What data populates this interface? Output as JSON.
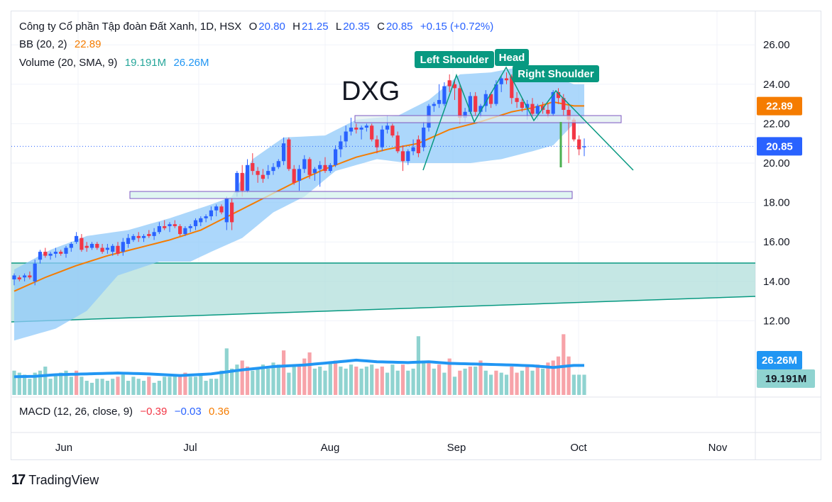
{
  "header": {
    "symbol_desc": "Công ty Cổ phần Tập đoàn Đất Xanh, 1D, HSX",
    "o_label": "O",
    "o_value": "20.80",
    "h_label": "H",
    "h_value": "21.25",
    "l_label": "L",
    "l_value": "20.35",
    "c_label": "C",
    "c_value": "20.85",
    "change": "+0.15 (+0.72%)"
  },
  "bb_legend": {
    "label": "BB (20, 2)",
    "value": "22.89"
  },
  "volume_legend": {
    "label": "Volume (20, SMA, 9)",
    "value1": "19.191M",
    "value2": "26.26M"
  },
  "macd_legend": {
    "label": "MACD (12, 26, close, 9)",
    "v1": "−0.39",
    "v2": "−0.03",
    "v3": "0.36"
  },
  "brand": {
    "name": "TradingView",
    "logo": "17"
  },
  "colors": {
    "up": "#2962ff",
    "down": "#f23645",
    "basis": "#f57c00",
    "band_fill": "#90caf9",
    "zone_fill": "#b2dfdb",
    "zone_line": "#089981",
    "purple": "#7e57c2",
    "vol_up": "#8fd3d0",
    "vol_down": "#f7a3a9",
    "vol_ma": "#2196f3",
    "label_teal": "#089981"
  },
  "chart_data": {
    "type": "candlestick",
    "title": "DXG",
    "x_labels": [
      "Jun",
      "Jul",
      "Aug",
      "Sep",
      "Oct",
      "Nov"
    ],
    "y_ticks": [
      "26.00",
      "24.00",
      "22.00",
      "20.00",
      "18.00",
      "16.00",
      "14.00",
      "12.00"
    ],
    "ylim": [
      11.0,
      27.2
    ],
    "last_price": 20.85,
    "bb_basis_value": 22.89,
    "annotations": [
      "Left Shoulder",
      "Head",
      "Right Shoulder"
    ],
    "candles": [
      {
        "o": 14.1,
        "h": 14.4,
        "l": 13.8,
        "c": 14.3
      },
      {
        "o": 14.2,
        "h": 14.3,
        "l": 14.0,
        "c": 14.1
      },
      {
        "o": 14.2,
        "h": 14.4,
        "l": 14.0,
        "c": 14.3
      },
      {
        "o": 14.3,
        "h": 14.5,
        "l": 14.1,
        "c": 14.2
      },
      {
        "o": 14.0,
        "h": 15.1,
        "l": 13.8,
        "c": 14.9
      },
      {
        "o": 15.1,
        "h": 15.6,
        "l": 14.9,
        "c": 15.5
      },
      {
        "o": 15.5,
        "h": 15.7,
        "l": 15.2,
        "c": 15.3
      },
      {
        "o": 15.3,
        "h": 15.5,
        "l": 15.1,
        "c": 15.4
      },
      {
        "o": 15.4,
        "h": 15.7,
        "l": 15.2,
        "c": 15.5
      },
      {
        "o": 15.5,
        "h": 15.6,
        "l": 15.3,
        "c": 15.4
      },
      {
        "o": 15.4,
        "h": 15.8,
        "l": 15.2,
        "c": 15.7
      },
      {
        "o": 15.7,
        "h": 16.0,
        "l": 15.5,
        "c": 15.9
      },
      {
        "o": 16.0,
        "h": 16.5,
        "l": 15.9,
        "c": 16.3
      },
      {
        "o": 16.2,
        "h": 16.4,
        "l": 15.5,
        "c": 15.6
      },
      {
        "o": 15.8,
        "h": 16.0,
        "l": 15.5,
        "c": 15.7
      },
      {
        "o": 15.7,
        "h": 16.0,
        "l": 15.6,
        "c": 15.9
      },
      {
        "o": 15.9,
        "h": 16.0,
        "l": 15.6,
        "c": 15.7
      },
      {
        "o": 15.7,
        "h": 15.9,
        "l": 15.4,
        "c": 15.5
      },
      {
        "o": 15.6,
        "h": 15.9,
        "l": 15.4,
        "c": 15.7
      },
      {
        "o": 15.5,
        "h": 15.9,
        "l": 15.3,
        "c": 15.8
      },
      {
        "o": 15.8,
        "h": 16.0,
        "l": 15.3,
        "c": 15.4
      },
      {
        "o": 15.5,
        "h": 16.2,
        "l": 15.3,
        "c": 16.0
      },
      {
        "o": 15.9,
        "h": 16.4,
        "l": 15.7,
        "c": 16.2
      },
      {
        "o": 16.1,
        "h": 16.4,
        "l": 16.0,
        "c": 16.3
      },
      {
        "o": 16.3,
        "h": 16.5,
        "l": 16.0,
        "c": 16.2
      },
      {
        "o": 16.2,
        "h": 16.4,
        "l": 16.0,
        "c": 16.3
      },
      {
        "o": 16.4,
        "h": 16.6,
        "l": 16.2,
        "c": 16.3
      },
      {
        "o": 16.3,
        "h": 16.7,
        "l": 16.1,
        "c": 16.5
      },
      {
        "o": 16.5,
        "h": 17.0,
        "l": 16.4,
        "c": 16.8
      },
      {
        "o": 16.8,
        "h": 17.1,
        "l": 16.6,
        "c": 16.7
      },
      {
        "o": 16.8,
        "h": 17.0,
        "l": 16.5,
        "c": 16.9
      },
      {
        "o": 16.9,
        "h": 17.1,
        "l": 16.7,
        "c": 16.8
      },
      {
        "o": 16.8,
        "h": 16.9,
        "l": 16.3,
        "c": 16.4
      },
      {
        "o": 16.4,
        "h": 16.8,
        "l": 16.3,
        "c": 16.7
      },
      {
        "o": 16.7,
        "h": 16.9,
        "l": 16.5,
        "c": 16.8
      },
      {
        "o": 16.8,
        "h": 17.2,
        "l": 16.6,
        "c": 17.1
      },
      {
        "o": 17.0,
        "h": 17.3,
        "l": 16.8,
        "c": 17.2
      },
      {
        "o": 17.2,
        "h": 17.4,
        "l": 17.0,
        "c": 17.3
      },
      {
        "o": 17.3,
        "h": 17.8,
        "l": 17.1,
        "c": 17.6
      },
      {
        "o": 17.6,
        "h": 17.9,
        "l": 17.3,
        "c": 17.8
      },
      {
        "o": 17.8,
        "h": 17.9,
        "l": 17.4,
        "c": 17.5
      },
      {
        "o": 17.0,
        "h": 18.3,
        "l": 16.6,
        "c": 18.2
      },
      {
        "o": 18.0,
        "h": 18.2,
        "l": 16.6,
        "c": 17.0
      },
      {
        "o": 18.5,
        "h": 19.6,
        "l": 18.3,
        "c": 19.5
      },
      {
        "o": 19.5,
        "h": 19.9,
        "l": 18.3,
        "c": 18.6
      },
      {
        "o": 18.6,
        "h": 20.2,
        "l": 18.5,
        "c": 19.9
      },
      {
        "o": 20.0,
        "h": 20.5,
        "l": 19.4,
        "c": 19.6
      },
      {
        "o": 19.6,
        "h": 19.8,
        "l": 19.0,
        "c": 19.4
      },
      {
        "o": 19.4,
        "h": 19.7,
        "l": 19.0,
        "c": 19.2
      },
      {
        "o": 19.4,
        "h": 19.9,
        "l": 19.2,
        "c": 19.6
      },
      {
        "o": 19.6,
        "h": 20.0,
        "l": 19.4,
        "c": 19.8
      },
      {
        "o": 19.8,
        "h": 20.2,
        "l": 19.7,
        "c": 20.1
      },
      {
        "o": 20.1,
        "h": 21.3,
        "l": 19.9,
        "c": 21.0
      },
      {
        "o": 21.2,
        "h": 21.3,
        "l": 19.6,
        "c": 19.7
      },
      {
        "o": 19.7,
        "h": 19.9,
        "l": 18.9,
        "c": 19.0
      },
      {
        "o": 19.1,
        "h": 19.9,
        "l": 18.6,
        "c": 19.7
      },
      {
        "o": 19.7,
        "h": 20.4,
        "l": 19.5,
        "c": 20.2
      },
      {
        "o": 20.2,
        "h": 20.3,
        "l": 19.2,
        "c": 19.4
      },
      {
        "o": 19.5,
        "h": 19.8,
        "l": 19.1,
        "c": 19.7
      },
      {
        "o": 19.7,
        "h": 20.1,
        "l": 18.8,
        "c": 19.9
      },
      {
        "o": 19.9,
        "h": 20.3,
        "l": 19.5,
        "c": 19.6
      },
      {
        "o": 19.6,
        "h": 20.0,
        "l": 19.5,
        "c": 19.9
      },
      {
        "o": 19.9,
        "h": 20.9,
        "l": 19.8,
        "c": 20.7
      },
      {
        "o": 20.7,
        "h": 21.4,
        "l": 20.3,
        "c": 21.1
      },
      {
        "o": 21.1,
        "h": 21.9,
        "l": 20.8,
        "c": 21.6
      },
      {
        "o": 21.6,
        "h": 22.3,
        "l": 21.4,
        "c": 21.8
      },
      {
        "o": 21.8,
        "h": 22.0,
        "l": 21.5,
        "c": 21.7
      },
      {
        "o": 21.7,
        "h": 21.9,
        "l": 21.2,
        "c": 21.8
      },
      {
        "o": 21.8,
        "h": 22.0,
        "l": 21.6,
        "c": 21.9
      },
      {
        "o": 21.9,
        "h": 22.0,
        "l": 21.1,
        "c": 21.2
      },
      {
        "o": 21.2,
        "h": 21.4,
        "l": 20.5,
        "c": 20.8
      },
      {
        "o": 20.8,
        "h": 21.9,
        "l": 20.6,
        "c": 21.7
      },
      {
        "o": 21.7,
        "h": 22.4,
        "l": 21.5,
        "c": 21.9
      },
      {
        "o": 21.9,
        "h": 22.0,
        "l": 21.3,
        "c": 21.4
      },
      {
        "o": 21.4,
        "h": 21.6,
        "l": 20.5,
        "c": 20.6
      },
      {
        "o": 20.6,
        "h": 20.9,
        "l": 19.6,
        "c": 20.1
      },
      {
        "o": 20.1,
        "h": 20.7,
        "l": 19.9,
        "c": 20.6
      },
      {
        "o": 20.6,
        "h": 21.2,
        "l": 20.4,
        "c": 20.8
      },
      {
        "o": 21.2,
        "h": 21.4,
        "l": 20.3,
        "c": 20.5
      },
      {
        "o": 20.8,
        "h": 22.1,
        "l": 20.6,
        "c": 21.8
      },
      {
        "o": 21.8,
        "h": 23.0,
        "l": 21.6,
        "c": 22.9
      },
      {
        "o": 22.9,
        "h": 23.1,
        "l": 22.6,
        "c": 23.0
      },
      {
        "o": 23.0,
        "h": 24.0,
        "l": 22.8,
        "c": 23.2
      },
      {
        "o": 23.0,
        "h": 24.1,
        "l": 22.9,
        "c": 23.9
      },
      {
        "o": 24.2,
        "h": 24.5,
        "l": 23.6,
        "c": 23.9
      },
      {
        "o": 24.0,
        "h": 24.2,
        "l": 23.2,
        "c": 23.8
      },
      {
        "o": 23.8,
        "h": 24.0,
        "l": 22.0,
        "c": 22.3
      },
      {
        "o": 22.3,
        "h": 22.8,
        "l": 22.1,
        "c": 22.6
      },
      {
        "o": 22.6,
        "h": 23.6,
        "l": 22.5,
        "c": 23.4
      },
      {
        "o": 23.4,
        "h": 23.6,
        "l": 22.4,
        "c": 22.6
      },
      {
        "o": 22.6,
        "h": 23.0,
        "l": 22.3,
        "c": 22.9
      },
      {
        "o": 22.9,
        "h": 23.7,
        "l": 22.6,
        "c": 23.5
      },
      {
        "o": 23.5,
        "h": 23.6,
        "l": 22.8,
        "c": 23.0
      },
      {
        "o": 23.0,
        "h": 24.2,
        "l": 22.9,
        "c": 24.0
      },
      {
        "o": 24.0,
        "h": 24.4,
        "l": 23.6,
        "c": 24.3
      },
      {
        "o": 24.3,
        "h": 24.6,
        "l": 24.0,
        "c": 24.2
      },
      {
        "o": 24.4,
        "h": 24.5,
        "l": 23.0,
        "c": 23.3
      },
      {
        "o": 23.3,
        "h": 23.6,
        "l": 22.8,
        "c": 23.1
      },
      {
        "o": 23.1,
        "h": 23.3,
        "l": 22.6,
        "c": 22.8
      },
      {
        "o": 22.8,
        "h": 23.2,
        "l": 22.2,
        "c": 23.0
      },
      {
        "o": 23.0,
        "h": 23.3,
        "l": 22.3,
        "c": 22.5
      },
      {
        "o": 22.5,
        "h": 23.0,
        "l": 22.2,
        "c": 22.9
      },
      {
        "o": 22.9,
        "h": 23.1,
        "l": 22.5,
        "c": 22.7
      },
      {
        "o": 22.7,
        "h": 23.0,
        "l": 22.3,
        "c": 22.5
      },
      {
        "o": 22.5,
        "h": 23.7,
        "l": 22.4,
        "c": 23.6
      },
      {
        "o": 23.6,
        "h": 23.8,
        "l": 23.0,
        "c": 23.3
      },
      {
        "o": 23.3,
        "h": 23.5,
        "l": 22.4,
        "c": 22.7
      },
      {
        "o": 22.7,
        "h": 22.9,
        "l": 20.0,
        "c": 22.2
      },
      {
        "o": 22.2,
        "h": 22.3,
        "l": 21.1,
        "c": 21.2
      },
      {
        "o": 21.2,
        "h": 21.4,
        "l": 20.4,
        "c": 20.7
      },
      {
        "o": 20.8,
        "h": 21.25,
        "l": 20.35,
        "c": 20.85
      }
    ],
    "bb_upper": [
      {
        "i": 0,
        "v": 14.6
      },
      {
        "i": 7,
        "v": 15.6
      },
      {
        "i": 14,
        "v": 16.3
      },
      {
        "i": 22,
        "v": 16.6
      },
      {
        "i": 30,
        "v": 17.2
      },
      {
        "i": 38,
        "v": 17.9
      },
      {
        "i": 42,
        "v": 18.3
      },
      {
        "i": 46,
        "v": 20.2
      },
      {
        "i": 52,
        "v": 21.3
      },
      {
        "i": 60,
        "v": 21.4
      },
      {
        "i": 66,
        "v": 22.2
      },
      {
        "i": 74,
        "v": 22.4
      },
      {
        "i": 80,
        "v": 23.2
      },
      {
        "i": 86,
        "v": 24.5
      },
      {
        "i": 92,
        "v": 24.6
      },
      {
        "i": 96,
        "v": 24.8
      },
      {
        "i": 102,
        "v": 24.6
      },
      {
        "i": 108,
        "v": 24.0
      }
    ],
    "bb_lower": [
      {
        "i": 0,
        "v": 11.0
      },
      {
        "i": 8,
        "v": 11.6
      },
      {
        "i": 14,
        "v": 12.5
      },
      {
        "i": 20,
        "v": 14.3
      },
      {
        "i": 28,
        "v": 15.0
      },
      {
        "i": 34,
        "v": 15.0
      },
      {
        "i": 38,
        "v": 15.5
      },
      {
        "i": 44,
        "v": 16.2
      },
      {
        "i": 50,
        "v": 17.5
      },
      {
        "i": 56,
        "v": 18.3
      },
      {
        "i": 62,
        "v": 19.6
      },
      {
        "i": 70,
        "v": 20.2
      },
      {
        "i": 76,
        "v": 20.0
      },
      {
        "i": 82,
        "v": 20.0
      },
      {
        "i": 88,
        "v": 20.0
      },
      {
        "i": 94,
        "v": 20.2
      },
      {
        "i": 100,
        "v": 20.6
      },
      {
        "i": 104,
        "v": 20.9
      },
      {
        "i": 108,
        "v": 22.0
      }
    ],
    "bb_basis": [
      {
        "i": 0,
        "v": 13.5
      },
      {
        "i": 6,
        "v": 14.2
      },
      {
        "i": 12,
        "v": 14.8
      },
      {
        "i": 18,
        "v": 15.3
      },
      {
        "i": 24,
        "v": 15.7
      },
      {
        "i": 30,
        "v": 16.1
      },
      {
        "i": 36,
        "v": 16.6
      },
      {
        "i": 42,
        "v": 17.4
      },
      {
        "i": 48,
        "v": 18.2
      },
      {
        "i": 54,
        "v": 19.0
      },
      {
        "i": 60,
        "v": 19.7
      },
      {
        "i": 66,
        "v": 20.3
      },
      {
        "i": 72,
        "v": 20.7
      },
      {
        "i": 78,
        "v": 21.0
      },
      {
        "i": 84,
        "v": 21.7
      },
      {
        "i": 90,
        "v": 22.1
      },
      {
        "i": 96,
        "v": 22.6
      },
      {
        "i": 100,
        "v": 22.8
      },
      {
        "i": 104,
        "v": 23.1
      },
      {
        "i": 106,
        "v": 23.0
      },
      {
        "i": 108,
        "v": 22.9
      }
    ],
    "volume_up": [
      6.0,
      5.5,
      5.0,
      4.0,
      5.5,
      6.0,
      7.0,
      4.0,
      5.0,
      5.5,
      6.0,
      4.5,
      5.0,
      4.5,
      3.5,
      3.0,
      4.0,
      4.0,
      3.5,
      4.0,
      4.5,
      5.0,
      3.5,
      4.5,
      4.0,
      3.5,
      4.0,
      3.0,
      3.5,
      4.5,
      4.5,
      5.0,
      4.0,
      3.5,
      4.5,
      4.5,
      5.0,
      3.5,
      4.0,
      4.0,
      6.0,
      11.5,
      6.5,
      7.5,
      6.0,
      6.5,
      6.0,
      6.5,
      7.5,
      6.5,
      8.0,
      7.5,
      6.0,
      5.5,
      7.0,
      8.5,
      7.5,
      6.0,
      6.5,
      7.0,
      6.0,
      8.0,
      7.5,
      7.0,
      6.5,
      7.5,
      8.5,
      6.5,
      7.0,
      7.5,
      6.0,
      6.5,
      5.5,
      7.5,
      6.0,
      5.5,
      6.0,
      6.5,
      14.5,
      8.5,
      6.0,
      6.5,
      8.0,
      5.5,
      6.0,
      4.5,
      6.0,
      6.5,
      5.5,
      7.0,
      5.0,
      6.0,
      5.0,
      6.5,
      5.5,
      5.0,
      5.5,
      6.0,
      6.0,
      4.5,
      6.0,
      5.5,
      6.5,
      5.5,
      6.0,
      5.0,
      5.5,
      4.5,
      5.0
    ],
    "volume_down_idx": [
      12,
      20,
      26,
      32,
      33,
      44,
      45,
      52,
      55,
      56,
      57,
      62,
      66,
      70,
      71,
      75,
      80,
      82,
      84,
      86,
      88,
      90,
      93,
      96,
      97,
      99,
      101,
      103,
      104,
      105,
      106,
      107
    ],
    "volume_down_vals": [
      6.0,
      4.5,
      4.5,
      5.0,
      5.5,
      8.5,
      7.0,
      11.0,
      7.5,
      9.0,
      10.5,
      8.5,
      7.0,
      6.5,
      7.0,
      7.5,
      8.5,
      7.5,
      9.0,
      6.0,
      7.0,
      8.5,
      6.0,
      7.0,
      5.5,
      7.5,
      7.5,
      8.0,
      8.5,
      9.5,
      15.0,
      9.5
    ],
    "volume_ma": [
      {
        "i": 0,
        "v": 4.5
      },
      {
        "i": 4,
        "v": 4.6
      },
      {
        "i": 8,
        "v": 5.0
      },
      {
        "i": 14,
        "v": 5.2
      },
      {
        "i": 20,
        "v": 5.4
      },
      {
        "i": 26,
        "v": 5.2
      },
      {
        "i": 32,
        "v": 4.8
      },
      {
        "i": 38,
        "v": 5.2
      },
      {
        "i": 44,
        "v": 6.2
      },
      {
        "i": 50,
        "v": 7.0
      },
      {
        "i": 56,
        "v": 7.4
      },
      {
        "i": 62,
        "v": 8.1
      },
      {
        "i": 66,
        "v": 8.6
      },
      {
        "i": 70,
        "v": 8.2
      },
      {
        "i": 76,
        "v": 8.0
      },
      {
        "i": 80,
        "v": 8.2
      },
      {
        "i": 84,
        "v": 7.8
      },
      {
        "i": 90,
        "v": 7.6
      },
      {
        "i": 96,
        "v": 7.4
      },
      {
        "i": 100,
        "v": 7.2
      },
      {
        "i": 104,
        "v": 6.8
      },
      {
        "i": 108,
        "v": 7.3
      }
    ],
    "volume_ylim": [
      0,
      24
    ]
  }
}
